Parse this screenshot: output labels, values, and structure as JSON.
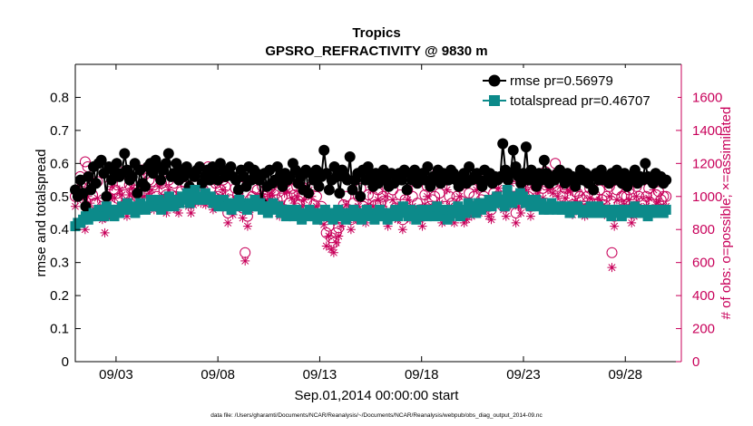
{
  "chart_data": {
    "type": "line",
    "title": "Tropics",
    "subtitle": "GPSRO_REFRACTIVITY @ 9830 m",
    "xlabel": "Sep.01,2014 00:00:00 start",
    "ylabel": "rmse and totalspread",
    "y2label": "# of obs: o=possible; ×=assimilated",
    "footnote": "data file: /Users/gharamti/Documents/NCAR/Reanalysis/~/Documents/NCAR/Reanalysis/webpub/obs_diag_output_2014-09.nc",
    "xlim": [
      1,
      30.75
    ],
    "ylim": [
      0,
      0.9
    ],
    "y2lim": [
      0,
      1800
    ],
    "xticks": [
      3,
      8,
      13,
      18,
      23,
      28
    ],
    "xtick_labels": [
      "09/03",
      "09/08",
      "09/13",
      "09/18",
      "09/23",
      "09/28"
    ],
    "yticks": [
      0,
      0.1,
      0.2,
      0.3,
      0.4,
      0.5,
      0.6,
      0.7,
      0.8
    ],
    "ytick_labels": [
      "0",
      "0.1",
      "0.2",
      "0.3",
      "0.4",
      "0.5",
      "0.6",
      "0.7",
      "0.8"
    ],
    "y2ticks": [
      0,
      200,
      400,
      600,
      800,
      1000,
      1200,
      1400,
      1600
    ],
    "y2tick_labels": [
      "0",
      "200",
      "400",
      "600",
      "800",
      "1000",
      "1200",
      "1400",
      "1600"
    ],
    "legend_position": "top-right",
    "legend": [
      "rmse pr=0.56979",
      "totalspread pr=0.46707"
    ],
    "series": [
      {
        "name": "rmse",
        "color": "#000000",
        "axis": "left",
        "values": [
          0.52,
          0.5,
          0.55,
          0.51,
          0.47,
          0.56,
          0.52,
          0.59,
          0.54,
          0.6,
          0.61,
          0.57,
          0.5,
          0.59,
          0.55,
          0.58,
          0.6,
          0.56,
          0.57,
          0.63,
          0.58,
          0.55,
          0.56,
          0.6,
          0.51,
          0.58,
          0.54,
          0.53,
          0.59,
          0.6,
          0.57,
          0.61,
          0.59,
          0.55,
          0.58,
          0.6,
          0.63,
          0.56,
          0.57,
          0.6,
          0.55,
          0.58,
          0.56,
          0.59,
          0.53,
          0.57,
          0.56,
          0.58,
          0.59,
          0.54,
          0.56,
          0.58,
          0.55,
          0.59,
          0.57,
          0.55,
          0.6,
          0.58,
          0.56,
          0.57,
          0.59,
          0.56,
          0.55,
          0.52,
          0.58,
          0.56,
          0.53,
          0.59,
          0.55,
          0.58,
          0.57,
          0.55,
          0.48,
          0.57,
          0.53,
          0.58,
          0.54,
          0.55,
          0.59,
          0.56,
          0.53,
          0.57,
          0.55,
          0.56,
          0.6,
          0.58,
          0.54,
          0.56,
          0.52,
          0.58,
          0.51,
          0.57,
          0.55,
          0.58,
          0.53,
          0.56,
          0.64,
          0.57,
          0.52,
          0.55,
          0.59,
          0.56,
          0.51,
          0.58,
          0.56,
          0.55,
          0.62,
          0.52,
          0.55,
          0.57,
          0.5,
          0.58,
          0.55,
          0.59,
          0.56,
          0.53,
          0.57,
          0.54,
          0.55,
          0.58,
          0.56,
          0.53,
          0.57,
          0.54,
          0.56,
          0.57,
          0.55,
          0.58,
          0.52,
          0.57,
          0.55,
          0.58,
          0.54,
          0.56,
          0.57,
          0.55,
          0.59,
          0.53,
          0.56,
          0.55,
          0.58,
          0.54,
          0.57,
          0.56,
          0.55,
          0.58,
          0.57,
          0.55,
          0.53,
          0.56,
          0.57,
          0.54,
          0.59,
          0.55,
          0.56,
          0.57,
          0.55,
          0.53,
          0.58,
          0.55,
          0.57,
          0.54,
          0.56,
          0.55,
          0.56,
          0.66,
          0.58,
          0.55,
          0.57,
          0.64,
          0.59,
          0.56,
          0.54,
          0.57,
          0.65,
          0.55,
          0.58,
          0.56,
          0.53,
          0.57,
          0.55,
          0.61,
          0.57,
          0.54,
          0.56,
          0.55,
          0.57,
          0.58,
          0.56,
          0.54,
          0.57,
          0.55,
          0.56,
          0.53,
          0.56,
          0.58,
          0.55,
          0.57,
          0.54,
          0.56,
          0.52,
          0.57,
          0.55,
          0.58,
          0.55,
          0.56,
          0.54,
          0.57,
          0.55,
          0.58,
          0.56,
          0.54,
          0.57,
          0.53,
          0.56,
          0.55,
          0.58,
          0.54,
          0.56,
          0.55,
          0.6,
          0.56,
          0.55,
          0.54,
          0.57,
          0.55,
          0.56,
          0.54,
          0.55
        ]
      },
      {
        "name": "totalspread",
        "color": "#0c8a8a",
        "axis": "left",
        "values": [
          0.41,
          0.42,
          0.42,
          0.43,
          0.44,
          0.43,
          0.44,
          0.45,
          0.44,
          0.46,
          0.45,
          0.44,
          0.47,
          0.45,
          0.46,
          0.44,
          0.46,
          0.45,
          0.47,
          0.46,
          0.48,
          0.46,
          0.47,
          0.45,
          0.46,
          0.48,
          0.47,
          0.46,
          0.47,
          0.49,
          0.48,
          0.47,
          0.49,
          0.46,
          0.48,
          0.47,
          0.5,
          0.48,
          0.47,
          0.49,
          0.48,
          0.5,
          0.49,
          0.51,
          0.48,
          0.5,
          0.52,
          0.49,
          0.5,
          0.49,
          0.51,
          0.49,
          0.5,
          0.48,
          0.49,
          0.47,
          0.48,
          0.49,
          0.47,
          0.48,
          0.46,
          0.48,
          0.47,
          0.49,
          0.48,
          0.47,
          0.46,
          0.48,
          0.47,
          0.49,
          0.47,
          0.48,
          0.46,
          0.47,
          0.45,
          0.47,
          0.48,
          0.46,
          0.47,
          0.45,
          0.46,
          0.44,
          0.46,
          0.45,
          0.44,
          0.46,
          0.45,
          0.43,
          0.45,
          0.44,
          0.46,
          0.45,
          0.44,
          0.43,
          0.45,
          0.44,
          0.46,
          0.44,
          0.45,
          0.43,
          0.44,
          0.46,
          0.45,
          0.44,
          0.43,
          0.45,
          0.44,
          0.46,
          0.45,
          0.44,
          0.43,
          0.45,
          0.46,
          0.44,
          0.45,
          0.43,
          0.44,
          0.46,
          0.45,
          0.44,
          0.43,
          0.45,
          0.44,
          0.46,
          0.44,
          0.45,
          0.47,
          0.45,
          0.44,
          0.46,
          0.45,
          0.43,
          0.44,
          0.46,
          0.45,
          0.44,
          0.46,
          0.45,
          0.44,
          0.47,
          0.45,
          0.44,
          0.46,
          0.43,
          0.44,
          0.46,
          0.45,
          0.47,
          0.44,
          0.46,
          0.45,
          0.48,
          0.46,
          0.47,
          0.45,
          0.48,
          0.46,
          0.48,
          0.47,
          0.49,
          0.47,
          0.48,
          0.5,
          0.48,
          0.49,
          0.47,
          0.52,
          0.49,
          0.48,
          0.5,
          0.49,
          0.51,
          0.5,
          0.48,
          0.49,
          0.47,
          0.48,
          0.49,
          0.47,
          0.48,
          0.46,
          0.47,
          0.46,
          0.48,
          0.47,
          0.46,
          0.47,
          0.46,
          0.47,
          0.46,
          0.45,
          0.47,
          0.46,
          0.47,
          0.46,
          0.45,
          0.46,
          0.45,
          0.47,
          0.46,
          0.45,
          0.47,
          0.46,
          0.45,
          0.46,
          0.45,
          0.44,
          0.46,
          0.45,
          0.46,
          0.44,
          0.46,
          0.45,
          0.46,
          0.45,
          0.47,
          0.46,
          0.45,
          0.46,
          0.45,
          0.44,
          0.46,
          0.45,
          0.46,
          0.45,
          0.46,
          0.45,
          0.46
        ]
      },
      {
        "name": "# possible (o)",
        "color": "#c8005a",
        "axis": "right",
        "values": [
          1000,
          1040,
          1120,
          1050,
          1210,
          1180,
          1060,
          1010,
          960,
          1090,
          920,
          940,
          880,
          1000,
          1070,
          1120,
          1040,
          990,
          1150,
          1080,
          1010,
          960,
          1070,
          1120,
          1040,
          1000,
          1120,
          1160,
          1060,
          980,
          1100,
          1090,
          960,
          1000,
          1120,
          1080,
          1040,
          1010,
          1100,
          1010,
          1080,
          1000,
          960,
          1030,
          1090,
          1060,
          1000,
          960,
          1000,
          1070,
          1120,
          1010,
          1040,
          1000,
          1180,
          1050,
          970,
          1080,
          1000,
          1040,
          1100,
          1060,
          900,
          980,
          950,
          1050,
          1010,
          1060,
          930,
          660,
          880,
          980,
          1000,
          1050,
          1040,
          990,
          1060,
          1000,
          1040,
          1050,
          1070,
          1010,
          980,
          940,
          1000,
          1080,
          1090,
          960,
          1050,
          1010,
          1060,
          950,
          1000,
          1040,
          970,
          1100,
          1060,
          950,
          1000,
          920,
          940,
          900,
          780,
          820,
          750,
          720,
          780,
          810,
          870,
          950,
          1000,
          920,
          860,
          960,
          920,
          1000,
          1050,
          940,
          900,
          1010,
          1100,
          1000,
          950,
          1040,
          960,
          1000,
          1060,
          880,
          950,
          1040,
          930,
          920,
          1010,
          860,
          980,
          1040,
          920,
          1000,
          1140,
          960,
          920,
          880,
          1010,
          1060,
          940,
          980,
          1000,
          1140,
          1020,
          900,
          940,
          1100,
          1000,
          960,
          900,
          1000,
          1060,
          970,
          900,
          920,
          1020,
          940,
          1000,
          1100,
          960,
          980,
          1000,
          1140,
          940,
          920,
          1020,
          1000,
          1110,
          1060,
          980,
          940,
          1010,
          1140,
          1060,
          900,
          1000,
          960,
          1080,
          1100,
          1000,
          940,
          1030,
          1060,
          1080,
          1120,
          1050,
          1150,
          1100,
          1110,
          1080,
          1200,
          1060,
          1120,
          1000,
          1050,
          1100,
          1090,
          950,
          1030,
          1020,
          1000,
          980,
          940,
          1000,
          1050,
          1090,
          1010,
          960,
          1040,
          980,
          950,
          1000,
          1060,
          660,
          880,
          1040,
          950,
          1000,
          1010,
          1000,
          1040,
          900,
          940,
          1060,
          1000,
          960,
          970,
          1000,
          1050,
          950,
          1100,
          1010,
          1030,
          980,
          1000,
          1000
        ]
      },
      {
        "name": "# assimilated (×)",
        "color": "#c8005a",
        "axis": "right",
        "values": [
          940,
          980,
          1060,
          990,
          800,
          1000,
          960,
          900,
          880,
          990,
          900,
          860,
          780,
          920,
          1000,
          1060,
          990,
          930,
          1040,
          1010,
          960,
          880,
          1010,
          1050,
          1000,
          920,
          1050,
          1090,
          1000,
          950,
          1020,
          1040,
          920,
          950,
          1060,
          1000,
          980,
          900,
          1040,
          950,
          1000,
          920,
          900,
          980,
          1000,
          1000,
          940,
          900,
          950,
          1010,
          1050,
          960,
          990,
          950,
          1100,
          980,
          920,
          1000,
          940,
          980,
          1040,
          1000,
          840,
          940,
          890,
          980,
          960,
          1000,
          870,
          610,
          820,
          920,
          940,
          980,
          990,
          940,
          1000,
          960,
          980,
          1000,
          1010,
          960,
          920,
          880,
          950,
          1020,
          1030,
          900,
          990,
          960,
          1000,
          900,
          940,
          980,
          910,
          1040,
          1000,
          900,
          940,
          880,
          880,
          830,
          700,
          760,
          680,
          660,
          720,
          760,
          820,
          880,
          950,
          860,
          800,
          900,
          860,
          940,
          990,
          880,
          840,
          950,
          1040,
          940,
          900,
          980,
          900,
          940,
          1000,
          820,
          900,
          980,
          870,
          860,
          950,
          800,
          920,
          980,
          860,
          940,
          1080,
          900,
          860,
          820,
          950,
          1000,
          880,
          920,
          940,
          1080,
          960,
          840,
          880,
          1040,
          940,
          900,
          840,
          940,
          1000,
          910,
          840,
          860,
          960,
          880,
          940,
          1040,
          900,
          920,
          940,
          1080,
          880,
          860,
          960,
          940,
          1050,
          1000,
          920,
          880,
          950,
          1080,
          1000,
          840,
          940,
          900,
          1020,
          1040,
          940,
          880,
          970,
          1000,
          1020,
          1060,
          990,
          1090,
          1040,
          1050,
          1020,
          1140,
          1000,
          1060,
          940,
          990,
          1040,
          1030,
          890,
          970,
          960,
          940,
          920,
          880,
          940,
          990,
          1030,
          950,
          900,
          980,
          920,
          890,
          940,
          1000,
          570,
          820,
          980,
          890,
          940,
          950,
          940,
          980,
          840,
          880,
          1000,
          940,
          900,
          910,
          940,
          990,
          890,
          1040,
          950,
          970,
          920,
          940,
          940
        ]
      }
    ]
  }
}
